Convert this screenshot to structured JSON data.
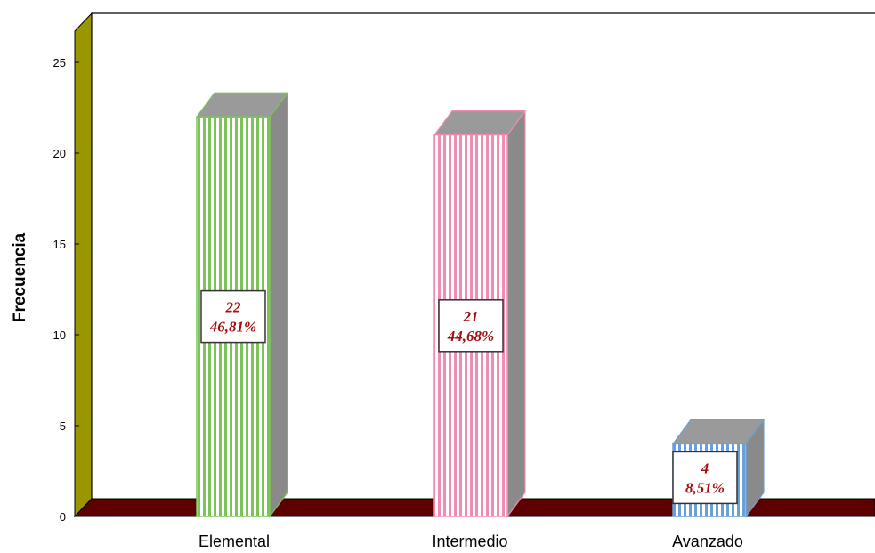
{
  "chart_data": {
    "type": "bar",
    "ylabel": "Frecuencia",
    "xlabel": "",
    "ylim": [
      0,
      27
    ],
    "yticks": [
      0,
      5,
      10,
      15,
      20,
      25
    ],
    "categories": [
      "Elemental",
      "Intermedio",
      "Avanzado"
    ],
    "values": [
      22,
      21,
      4
    ],
    "percent_labels": [
      "46,81%",
      "44,68%",
      "8,51%"
    ],
    "grid": false,
    "legend": "none",
    "three_d": true,
    "colors": {
      "bars": [
        "#7cc45a",
        "#f08cb4",
        "#6a9fd8"
      ],
      "bar_fill_base": "#ffffff",
      "bar_top": "#9a9a9a",
      "bar_side": "#8a8a8a",
      "floor": "#5c0000",
      "wall": "#9a9600",
      "data_label": "#a01010"
    }
  }
}
